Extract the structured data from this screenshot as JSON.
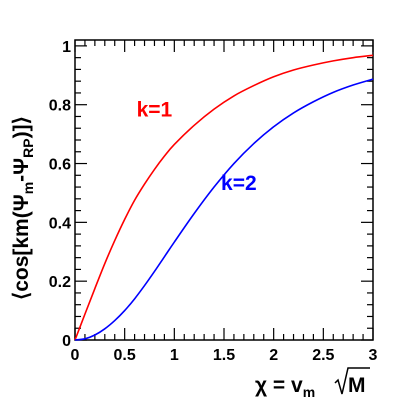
{
  "chart_data": {
    "type": "line",
    "title": "",
    "xlabel": "χ = v",
    "xlabel_sub": "m",
    "xlabel_sqrt_arg": "M",
    "ylabel": "⟨cos[km(Ψ",
    "ylabel_sub1": "m",
    "ylabel_mid": "-Ψ",
    "ylabel_sub2": "RP",
    "ylabel_tail": ")]⟩",
    "xlim": [
      0,
      3
    ],
    "ylim": [
      0,
      1.02
    ],
    "xticks": [
      {
        "value": 0,
        "label": "0"
      },
      {
        "value": 0.5,
        "label": "0.5"
      },
      {
        "value": 1,
        "label": "1"
      },
      {
        "value": 1.5,
        "label": "1.5"
      },
      {
        "value": 2,
        "label": "2"
      },
      {
        "value": 2.5,
        "label": "2.5"
      },
      {
        "value": 3,
        "label": "3"
      }
    ],
    "yticks": [
      {
        "value": 0,
        "label": "0"
      },
      {
        "value": 0.2,
        "label": "0.2"
      },
      {
        "value": 0.4,
        "label": "0.4"
      },
      {
        "value": 0.6,
        "label": "0.6"
      },
      {
        "value": 0.8,
        "label": "0.8"
      },
      {
        "value": 1,
        "label": "1"
      }
    ],
    "grid": false,
    "series": [
      {
        "name": "k=1",
        "color": "#ff0000",
        "x": [
          0,
          0.1,
          0.2,
          0.3,
          0.4,
          0.5,
          0.6,
          0.7,
          0.8,
          0.9,
          1.0,
          1.2,
          1.4,
          1.6,
          1.8,
          2.0,
          2.2,
          2.4,
          2.6,
          2.8,
          3.0
        ],
        "y": [
          0,
          0.088,
          0.175,
          0.26,
          0.338,
          0.41,
          0.475,
          0.53,
          0.58,
          0.625,
          0.665,
          0.73,
          0.785,
          0.83,
          0.865,
          0.895,
          0.918,
          0.935,
          0.949,
          0.96,
          0.968
        ]
      },
      {
        "name": "k=2",
        "color": "#0000ff",
        "x": [
          0,
          0.1,
          0.2,
          0.3,
          0.4,
          0.5,
          0.6,
          0.7,
          0.8,
          0.9,
          1.0,
          1.2,
          1.4,
          1.6,
          1.8,
          2.0,
          2.2,
          2.4,
          2.6,
          2.8,
          3.0
        ],
        "y": [
          0,
          0.004,
          0.017,
          0.038,
          0.066,
          0.1,
          0.14,
          0.185,
          0.233,
          0.283,
          0.333,
          0.43,
          0.52,
          0.6,
          0.668,
          0.725,
          0.772,
          0.81,
          0.842,
          0.867,
          0.887
        ]
      }
    ],
    "annotations": [
      {
        "text": "k=1",
        "color": "#ff0000",
        "x": 0.62,
        "y": 0.76
      },
      {
        "text": "k=2",
        "color": "#0000ff",
        "x": 1.47,
        "y": 0.51
      }
    ]
  }
}
